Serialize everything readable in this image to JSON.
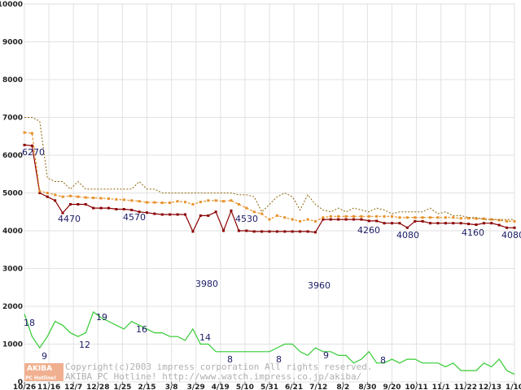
{
  "chart_data": {
    "type": "line",
    "ylim": [
      0,
      10000
    ],
    "yticks": [
      0,
      1000,
      2000,
      3000,
      4000,
      5000,
      6000,
      7000,
      8000,
      9000,
      10000
    ],
    "xtick_labels": [
      "10/26",
      "11/16",
      "12/7",
      "12/28",
      "1/25",
      "2/15",
      "3/8",
      "3/29",
      "4/19",
      "5/10",
      "5/31",
      "6/21",
      "7/12",
      "8/2",
      "8/30",
      "9/20",
      "10/11",
      "11/1",
      "11/22",
      "12/13",
      "1/10"
    ],
    "grid": true,
    "series": [
      {
        "color": "#8b0000",
        "style": "solid-markers",
        "values": [
          6270,
          6250,
          5000,
          4900,
          4800,
          4470,
          4700,
          4700,
          4700,
          4600,
          4600,
          4600,
          4570,
          4570,
          4550,
          4500,
          4480,
          4450,
          4430,
          4430,
          4430,
          4430,
          3980,
          4400,
          4400,
          4500,
          4000,
          4530,
          4000,
          4000,
          3980,
          3980,
          3980,
          3980,
          3980,
          3980,
          3980,
          3980,
          3960,
          4300,
          4300,
          4300,
          4300,
          4300,
          4300,
          4260,
          4260,
          4200,
          4200,
          4200,
          4080,
          4250,
          4250,
          4200,
          4200,
          4200,
          4200,
          4200,
          4180,
          4160,
          4200,
          4200,
          4150,
          4080,
          4080
        ]
      },
      {
        "color": "#e8912a",
        "style": "dashed-markers",
        "values": [
          6600,
          6580,
          5050,
          5000,
          4950,
          4900,
          4920,
          4900,
          4880,
          4870,
          4860,
          4850,
          4830,
          4820,
          4800,
          4780,
          4750,
          4750,
          4740,
          4740,
          4780,
          4760,
          4700,
          4760,
          4800,
          4800,
          4780,
          4800,
          4700,
          4600,
          4500,
          4450,
          4300,
          4400,
          4350,
          4300,
          4250,
          4300,
          4250,
          4350,
          4380,
          4380,
          4380,
          4380,
          4380,
          4380,
          4380,
          4380,
          4380,
          4350,
          4350,
          4350,
          4350,
          4350,
          4350,
          4350,
          4350,
          4330,
          4330,
          4320,
          4320,
          4300,
          4280,
          4250,
          4250
        ]
      },
      {
        "color": "#8b6508",
        "style": "dotted",
        "values": [
          7000,
          7000,
          6900,
          5400,
          5300,
          5300,
          5100,
          5300,
          5100,
          5100,
          5100,
          5100,
          5100,
          5100,
          5100,
          5300,
          5100,
          5100,
          5000,
          5000,
          5000,
          5000,
          5000,
          5000,
          5000,
          5000,
          5000,
          5000,
          4950,
          4950,
          4900,
          4500,
          4700,
          4900,
          5000,
          4900,
          4550,
          4950,
          4700,
          4550,
          4500,
          4600,
          4500,
          4600,
          4550,
          4500,
          4600,
          4550,
          4450,
          4500,
          4500,
          4500,
          4500,
          4600,
          4450,
          4500,
          4400,
          4400,
          4350,
          4350,
          4300,
          4300,
          4300,
          4300,
          4300
        ]
      },
      {
        "color": "#33cc33",
        "style": "solid",
        "values": [
          1800,
          1200,
          900,
          1200,
          1600,
          1500,
          1300,
          1200,
          1300,
          1850,
          1700,
          1600,
          1500,
          1400,
          1600,
          1500,
          1400,
          1300,
          1300,
          1200,
          1200,
          1100,
          1400,
          1000,
          1000,
          800,
          800,
          800,
          800,
          800,
          800,
          800,
          800,
          900,
          1000,
          1000,
          800,
          700,
          900,
          800,
          800,
          700,
          700,
          500,
          600,
          800,
          500,
          500,
          600,
          500,
          600,
          600,
          500,
          500,
          500,
          400,
          500,
          300,
          300,
          300,
          500,
          400,
          600,
          300,
          200
        ]
      }
    ],
    "annotations": [
      "6270",
      "4470",
      "4570",
      "3980",
      "4530",
      "3960",
      "4260",
      "4080",
      "4160",
      "4080",
      "18",
      "9",
      "12",
      "19",
      "16",
      "14",
      "8",
      "8",
      "9",
      "8"
    ],
    "watermark": {
      "logo_top": "AKIBA",
      "logo_bottom": "PC Hotline!",
      "line1": "Copyright(c)2003 impress corporation All rights reserved.",
      "line2": "AKIBA PC Hotline! http://www.watch.impress.co.jp/akiba/"
    }
  }
}
